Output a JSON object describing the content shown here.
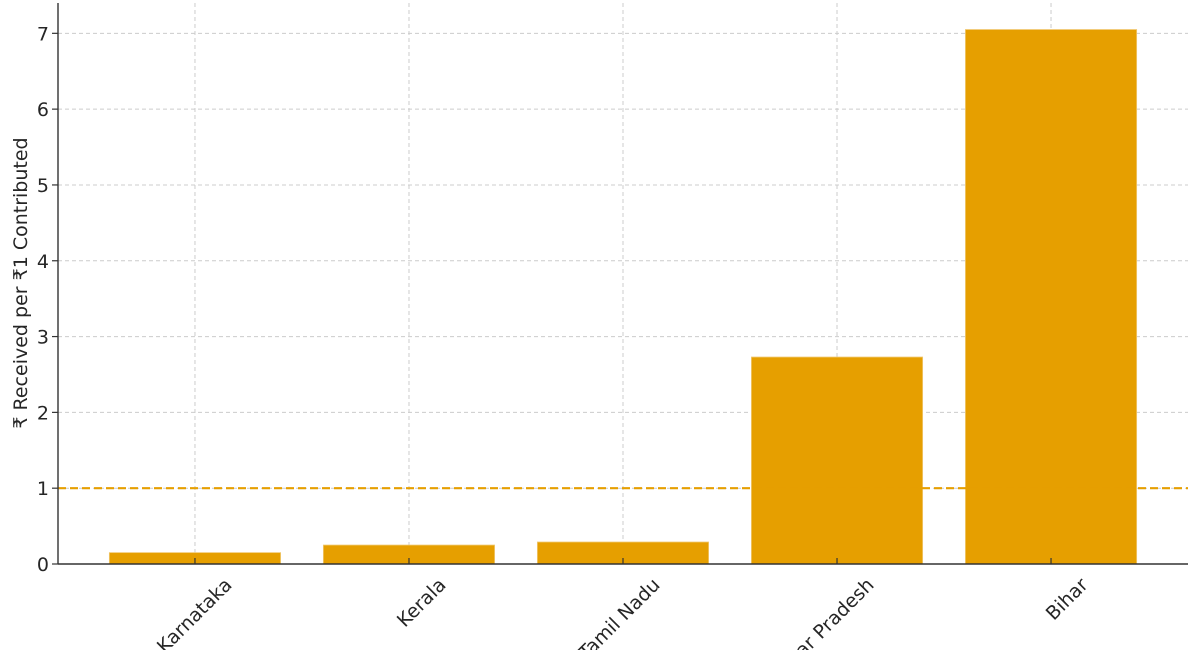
{
  "chart_data": {
    "type": "bar",
    "title": "",
    "xlabel": "",
    "ylabel": "₹ Received per ₹1 Contributed",
    "categories": [
      "Karnataka",
      "Kerala",
      "Tamil Nadu",
      "Uttar Pradesh",
      "Bihar"
    ],
    "values": [
      0.15,
      0.25,
      0.29,
      2.73,
      7.05
    ],
    "ylim": [
      0,
      7.4
    ],
    "yticks": [
      0,
      1,
      2,
      3,
      4,
      5,
      6,
      7
    ],
    "reference_line": {
      "y": 1,
      "style": "dashed",
      "color": "#E69F00"
    },
    "grid": true,
    "bar_color": "#E69F00"
  }
}
